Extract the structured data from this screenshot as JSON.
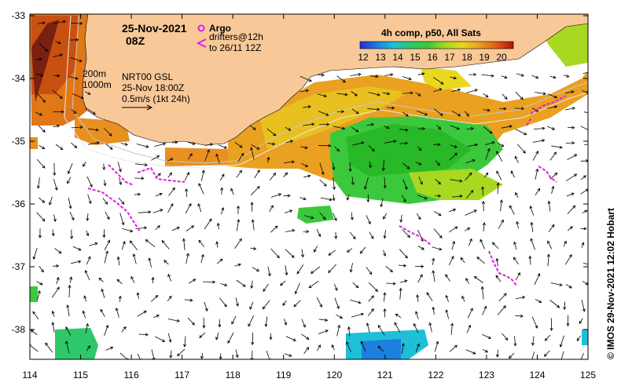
{
  "title": {
    "date": "25-Nov-2021",
    "time": "08Z"
  },
  "legend": {
    "argo_label": "Argo",
    "drifters_line1": "drifters@12h",
    "drifters_line2": "to 26/11 12Z",
    "depth_200": "200m",
    "depth_1000": "1000m",
    "gsl_line1": "NRT00 GSL",
    "gsl_line2": "25-Nov 18:00Z",
    "scale_label": "0.5m/s (1kt 24h)"
  },
  "colorbar": {
    "title": "4h comp, p50, All Sats",
    "ticks": [
      "12",
      "13",
      "14",
      "15",
      "16",
      "17",
      "18",
      "19",
      "20"
    ],
    "stops": [
      "#2b2bd8",
      "#1d7fe0",
      "#1fbfd8",
      "#2ec86a",
      "#3cc83c",
      "#a8d820",
      "#e8d820",
      "#e8a020",
      "#e06010",
      "#b01010"
    ]
  },
  "axes": {
    "x_ticks": [
      "114",
      "115",
      "116",
      "117",
      "118",
      "119",
      "120",
      "121",
      "122",
      "123",
      "124",
      "125"
    ],
    "y_ticks": [
      "-33",
      "-34",
      "-35",
      "-36",
      "-37",
      "-38"
    ]
  },
  "credit": "© IMOS 29-Nov-2021 12:02 Hobart",
  "colors": {
    "land": "#f8c898",
    "drifter": "#e020e0",
    "arrow": "#000000",
    "contour": "#c8c8c8"
  }
}
